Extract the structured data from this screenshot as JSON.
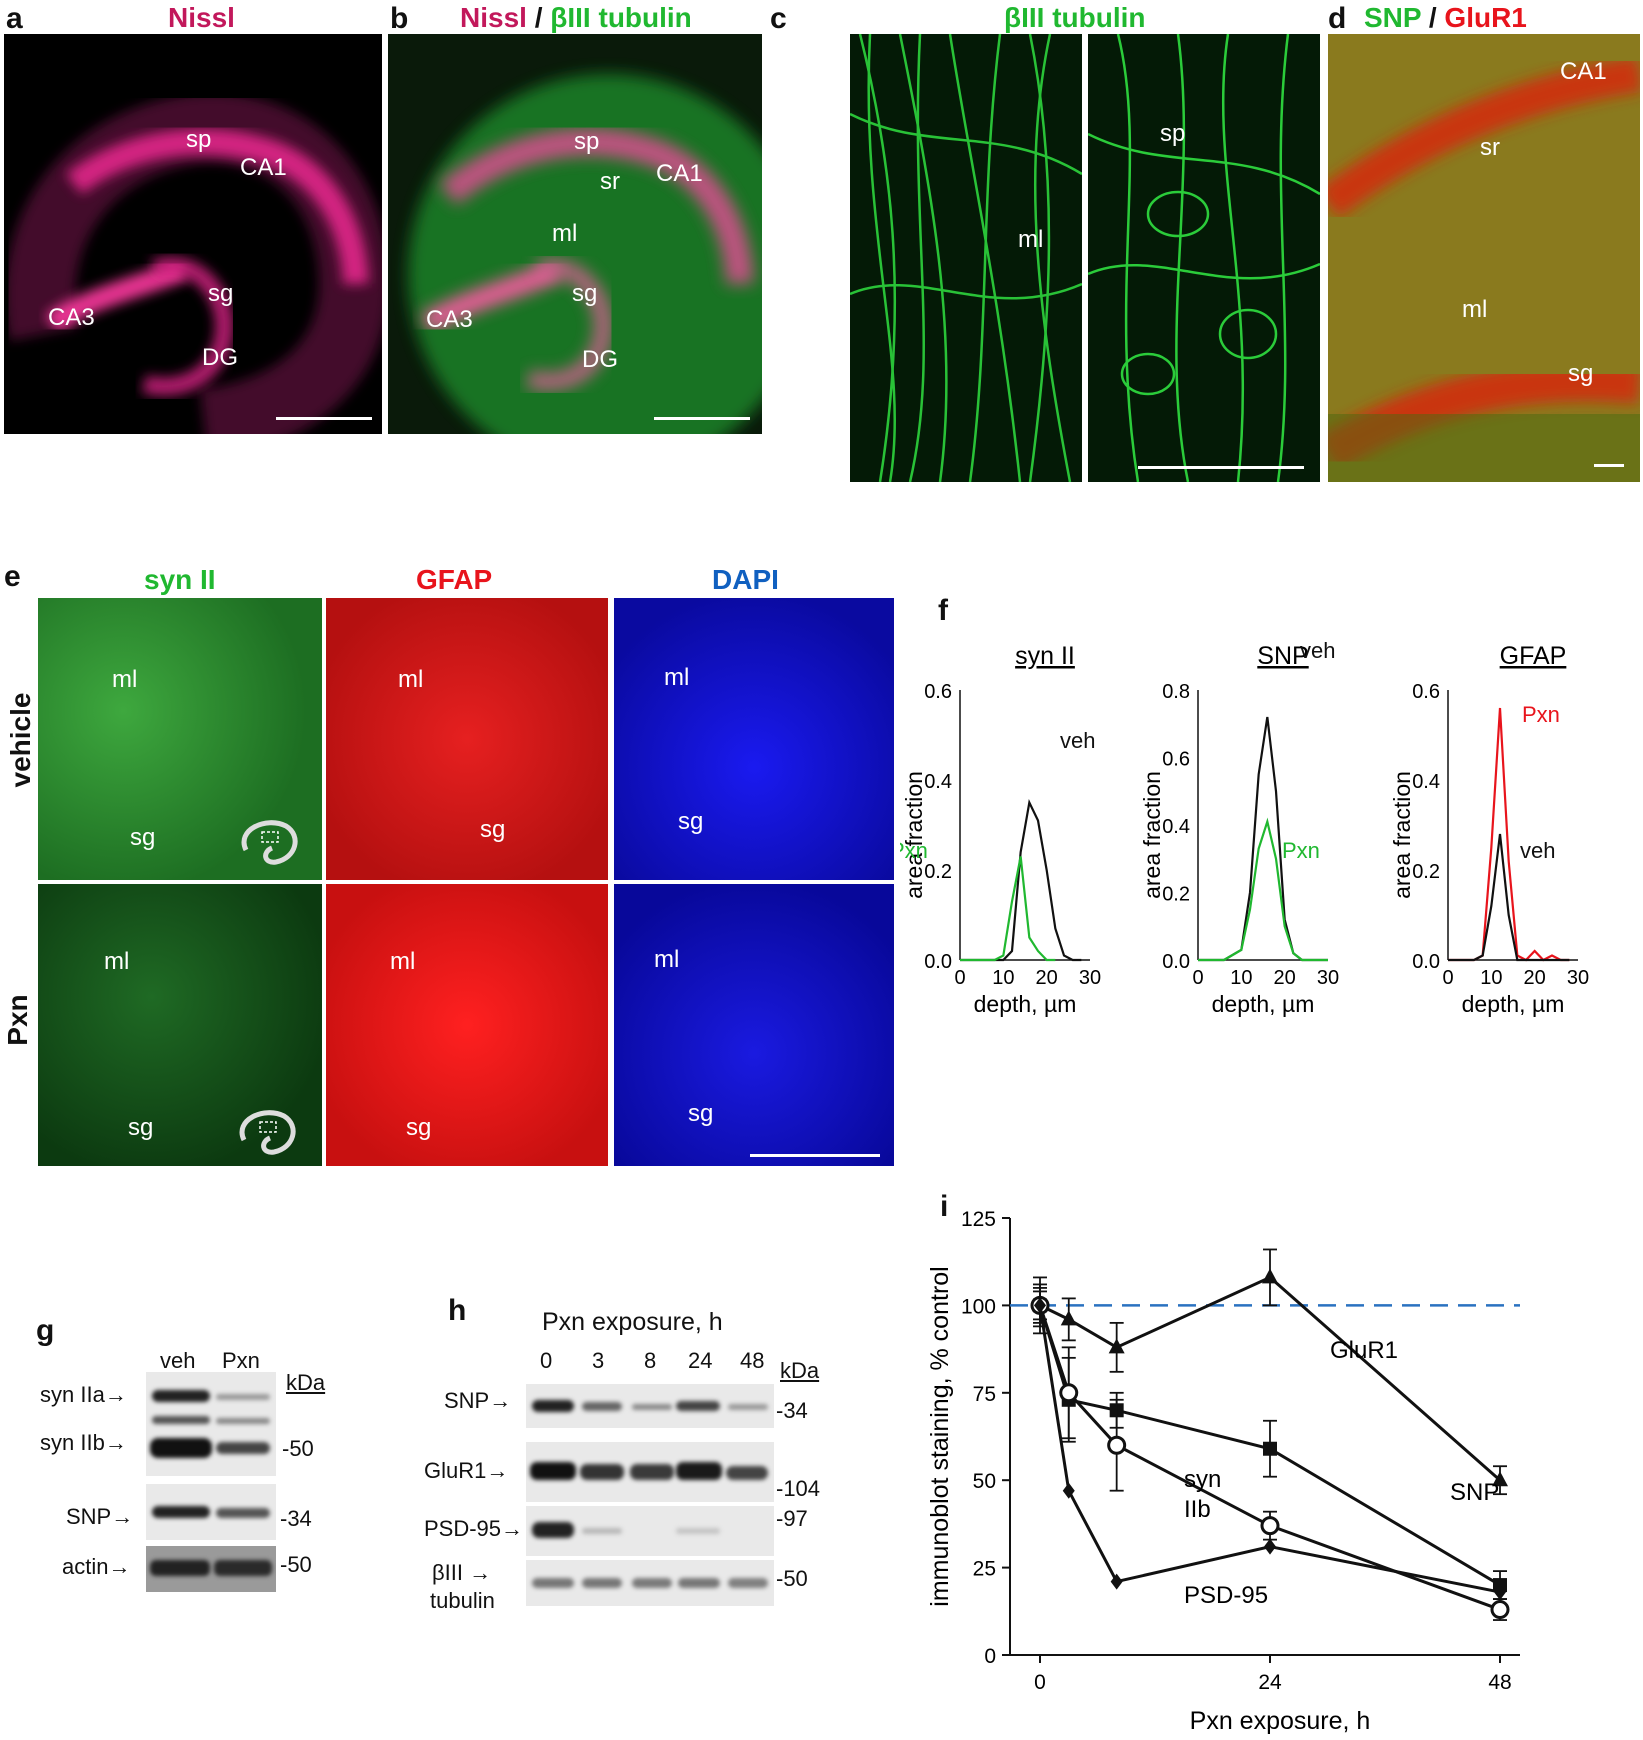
{
  "panels": {
    "a": {
      "letter": "a",
      "title": "Nissl",
      "labels": [
        "sp",
        "CA1",
        "sg",
        "CA3",
        "DG"
      ]
    },
    "b": {
      "letter": "b",
      "title_1": "Nissl",
      "title_sep": " / ",
      "title_2": "βIII tubulin",
      "labels": [
        "sp",
        "sr",
        "CA1",
        "ml",
        "sg",
        "CA3",
        "DG"
      ]
    },
    "c": {
      "letter": "c",
      "title": "βIII tubulin",
      "labels": [
        "ml",
        "sp"
      ]
    },
    "d": {
      "letter": "d",
      "title_1": "SNP",
      "title_sep": " / ",
      "title_2": "GluR1",
      "labels": [
        "CA1",
        "sr",
        "ml",
        "sg"
      ]
    },
    "e": {
      "letter": "e",
      "columns": [
        "syn II",
        "GFAP",
        "DAPI"
      ],
      "rows": [
        "vehicle",
        "Pxn"
      ],
      "labels": {
        "ml": "ml",
        "sg": "sg"
      }
    },
    "f": {
      "letter": "f"
    },
    "g": {
      "letter": "g",
      "lanes": [
        "veh",
        "Pxn"
      ],
      "unit": "kDa",
      "bands": [
        {
          "name": "syn IIa",
          "marker": ""
        },
        {
          "name": "syn IIb",
          "marker": "-50"
        },
        {
          "name": "SNP",
          "marker": "-34"
        },
        {
          "name": "actin",
          "marker": "-50"
        }
      ]
    },
    "h": {
      "letter": "h",
      "header": "Pxn exposure, h",
      "lanes": [
        "0",
        "3",
        "8",
        "24",
        "48"
      ],
      "unit": "kDa",
      "bands": [
        {
          "name": "SNP",
          "marker": "-34"
        },
        {
          "name": "GluR1",
          "marker": "-104"
        },
        {
          "name": "PSD-95",
          "marker": "-97"
        },
        {
          "name_1": "βIII",
          "name_2": "tubulin",
          "marker": "-50"
        }
      ]
    },
    "i": {
      "letter": "i"
    }
  },
  "colors": {
    "magenta": "#c2185b",
    "green": "#20b830",
    "red": "#e8141c",
    "blue": "#1060c0",
    "black": "#111111"
  },
  "chart_data": [
    {
      "id": "f-syn",
      "type": "line",
      "title": "syn II",
      "xlabel": "depth, µm",
      "ylabel": "area fraction",
      "xlim": [
        0,
        30
      ],
      "ylim": [
        0,
        0.6
      ],
      "xticks": [
        "0",
        "10",
        "20",
        "30"
      ],
      "yticks": [
        "0.0",
        "0.2",
        "0.4",
        "0.6"
      ],
      "series": [
        {
          "name": "veh",
          "color": "#111111",
          "x": [
            0,
            10,
            12,
            14,
            16,
            18,
            20,
            22,
            24,
            26,
            28
          ],
          "y": [
            0,
            0,
            0.02,
            0.24,
            0.35,
            0.31,
            0.2,
            0.07,
            0.01,
            0,
            0
          ]
        },
        {
          "name": "Pxn",
          "color": "#20b830",
          "x": [
            0,
            8,
            10,
            12,
            14,
            16,
            18,
            20,
            22
          ],
          "y": [
            0,
            0,
            0.01,
            0.13,
            0.23,
            0.05,
            0.02,
            0,
            0
          ]
        }
      ]
    },
    {
      "id": "f-snp",
      "type": "line",
      "title": "SNP",
      "xlabel": "depth, µm",
      "ylabel": "area fraction",
      "xlim": [
        0,
        30
      ],
      "ylim": [
        0,
        0.8
      ],
      "xticks": [
        "0",
        "10",
        "20",
        "30"
      ],
      "yticks": [
        "0.0",
        "0.2",
        "0.4",
        "0.6",
        "0.8"
      ],
      "series": [
        {
          "name": "veh",
          "color": "#111111",
          "x": [
            0,
            6,
            10,
            12,
            14,
            16,
            18,
            20,
            22,
            24,
            30
          ],
          "y": [
            0,
            0,
            0.03,
            0.2,
            0.55,
            0.72,
            0.5,
            0.12,
            0.02,
            0,
            0
          ]
        },
        {
          "name": "Pxn",
          "color": "#20b830",
          "x": [
            0,
            6,
            10,
            12,
            14,
            16,
            18,
            20,
            22,
            24,
            30
          ],
          "y": [
            0,
            0,
            0.03,
            0.15,
            0.33,
            0.41,
            0.3,
            0.1,
            0.02,
            0,
            0
          ]
        }
      ]
    },
    {
      "id": "f-gfap",
      "type": "line",
      "title": "GFAP",
      "xlabel": "depth, µm",
      "ylabel": "area fraction",
      "xlim": [
        0,
        30
      ],
      "ylim": [
        0,
        0.6
      ],
      "xticks": [
        "0",
        "10",
        "20",
        "30"
      ],
      "yticks": [
        "0.0",
        "0.2",
        "0.4",
        "0.6"
      ],
      "series": [
        {
          "name": "Pxn",
          "color": "#e8141c",
          "x": [
            0,
            6,
            8,
            10,
            12,
            14,
            16,
            18,
            20,
            22,
            24,
            26,
            28
          ],
          "y": [
            0,
            0,
            0.01,
            0.25,
            0.56,
            0.22,
            0.01,
            0,
            0.02,
            0,
            0.01,
            0,
            0
          ]
        },
        {
          "name": "veh",
          "color": "#111111",
          "x": [
            0,
            6,
            8,
            10,
            12,
            14,
            16,
            18,
            28
          ],
          "y": [
            0,
            0,
            0.01,
            0.12,
            0.28,
            0.1,
            0,
            0,
            0
          ]
        }
      ]
    },
    {
      "id": "i",
      "type": "line",
      "xlabel": "Pxn exposure, h",
      "ylabel": "immunoblot staining, % control",
      "xlim": [
        0,
        48
      ],
      "ylim": [
        0,
        125
      ],
      "xticks": [
        "0",
        "24",
        "48"
      ],
      "yticks": [
        "0",
        "25",
        "50",
        "75",
        "100",
        "125"
      ],
      "reference_line": 100,
      "series": [
        {
          "name": "GluR1",
          "marker": "triangle",
          "x": [
            0,
            3,
            8,
            24,
            48
          ],
          "y": [
            100,
            96,
            88,
            108,
            50
          ],
          "err": [
            5,
            6,
            7,
            8,
            4
          ]
        },
        {
          "name": "SNP",
          "marker": "square",
          "x": [
            0,
            3,
            8,
            24,
            48
          ],
          "y": [
            100,
            73,
            70,
            59,
            20
          ],
          "err": [
            6,
            12,
            5,
            8,
            4
          ]
        },
        {
          "name_1": "syn",
          "name_2": "IIb",
          "marker": "circle",
          "x": [
            0,
            3,
            8,
            24,
            48
          ],
          "y": [
            100,
            75,
            60,
            37,
            13
          ],
          "err": [
            8,
            13,
            13,
            4,
            3
          ]
        },
        {
          "name": "PSD-95",
          "marker": "diamond",
          "x": [
            0,
            3,
            8,
            24,
            48
          ],
          "y": [
            100,
            47,
            21,
            31,
            18
          ],
          "err": [
            4,
            0,
            0,
            0,
            0
          ]
        }
      ]
    }
  ]
}
